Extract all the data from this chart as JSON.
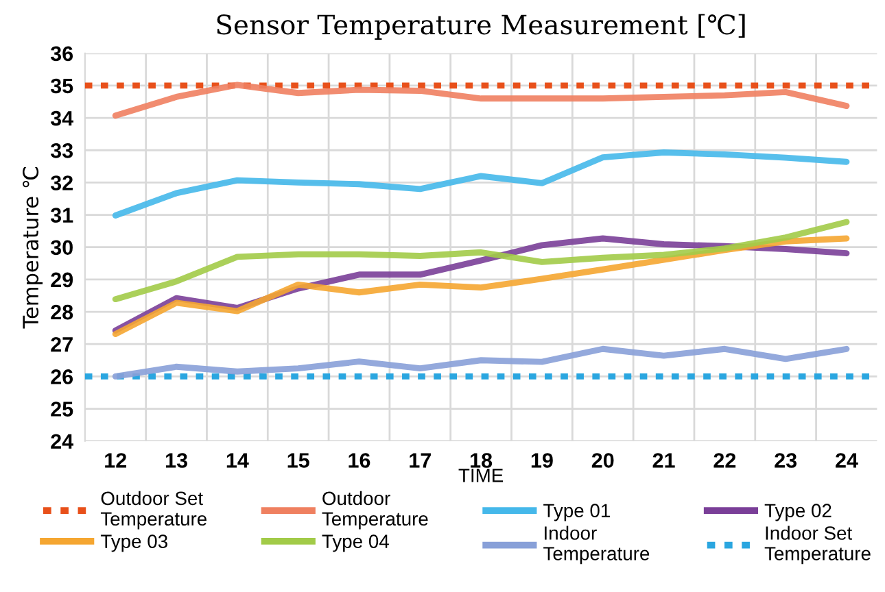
{
  "chart_data": {
    "type": "line",
    "title": "Sensor Temperature Measurement [℃]",
    "xlabel": "TIME",
    "ylabel": "Temperature ℃",
    "x": [
      12,
      13,
      14,
      15,
      16,
      17,
      18,
      19,
      20,
      21,
      22,
      23,
      24
    ],
    "xlim": [
      11.5,
      24.5
    ],
    "xticks": [
      12,
      13,
      14,
      15,
      16,
      17,
      18,
      19,
      20,
      21,
      22,
      23,
      24
    ],
    "ylim": [
      24,
      36
    ],
    "yticks": [
      24,
      25,
      26,
      27,
      28,
      29,
      30,
      31,
      32,
      33,
      34,
      35,
      36
    ],
    "grid": true,
    "legend": "bottom",
    "line_style": "solid",
    "marker": "none",
    "series": [
      {
        "name": "Outdoor Temperature",
        "color": "#ef8060",
        "values": [
          34.07,
          34.65,
          35.02,
          34.77,
          34.87,
          34.84,
          34.6,
          34.6,
          34.6,
          34.65,
          34.7,
          34.8,
          34.37
        ]
      },
      {
        "name": "Type 01",
        "color": "#45b8ea",
        "values": [
          30.98,
          31.67,
          32.07,
          32.0,
          31.95,
          31.8,
          32.2,
          31.98,
          32.78,
          32.93,
          32.87,
          32.77,
          32.64
        ]
      },
      {
        "name": "Type 02",
        "color": "#7a3f98",
        "values": [
          27.42,
          28.42,
          28.12,
          28.72,
          29.15,
          29.15,
          29.59,
          30.06,
          30.27,
          30.09,
          30.03,
          29.94,
          29.81
        ]
      },
      {
        "name": "Type 03",
        "color": "#f5a631",
        "values": [
          27.31,
          28.28,
          28.02,
          28.84,
          28.6,
          28.84,
          28.75,
          29.02,
          29.31,
          29.61,
          29.91,
          30.18,
          30.27
        ]
      },
      {
        "name": "Type 04",
        "color": "#a2cb48",
        "values": [
          28.39,
          28.94,
          29.7,
          29.78,
          29.78,
          29.73,
          29.84,
          29.54,
          29.67,
          29.76,
          29.96,
          30.3,
          30.78
        ]
      },
      {
        "name": "Indoor Temperature",
        "color": "#88a0d8",
        "values": [
          26.0,
          26.3,
          26.15,
          26.25,
          26.46,
          26.25,
          26.5,
          26.45,
          26.85,
          26.64,
          26.85,
          26.54,
          26.85
        ]
      }
    ],
    "ref_lines": [
      {
        "axis": "y",
        "value": 35,
        "label": "Outdoor Set Temperature",
        "color": "#e8501a",
        "line_style": "dotted"
      },
      {
        "axis": "y",
        "value": 26,
        "label": "Indoor Set Temperature",
        "color": "#2aa6e0",
        "line_style": "dotted"
      }
    ]
  }
}
